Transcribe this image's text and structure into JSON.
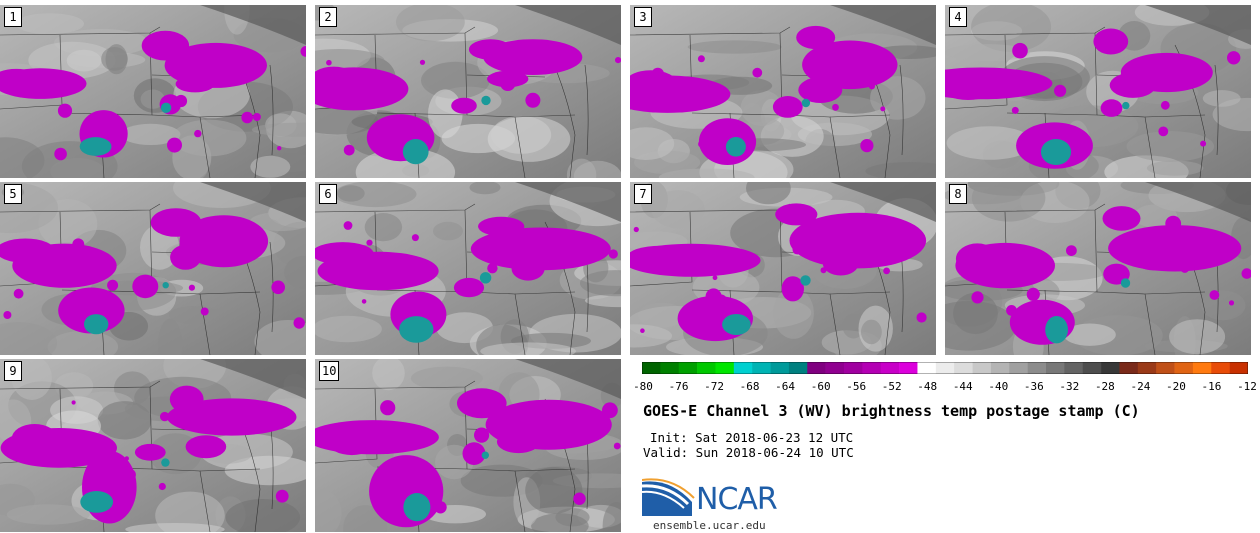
{
  "panels": [
    {
      "label": "1"
    },
    {
      "label": "2"
    },
    {
      "label": "3"
    },
    {
      "label": "4"
    },
    {
      "label": "5"
    },
    {
      "label": "6"
    },
    {
      "label": "7"
    },
    {
      "label": "8"
    },
    {
      "label": "9"
    },
    {
      "label": "10"
    }
  ],
  "colorbar": {
    "ticks": [
      "-80",
      "-76",
      "-72",
      "-68",
      "-64",
      "-60",
      "-56",
      "-52",
      "-48",
      "-44",
      "-40",
      "-36",
      "-32",
      "-28",
      "-24",
      "-20",
      "-16",
      "-12"
    ],
    "colors": [
      "#006400",
      "#008000",
      "#00a000",
      "#00c800",
      "#00e600",
      "#00d0d0",
      "#00b4b4",
      "#009a9a",
      "#008080",
      "#800080",
      "#900090",
      "#a000a0",
      "#b400b4",
      "#c800c8",
      "#dc00dc",
      "#ffffff",
      "#ececec",
      "#dcdcdc",
      "#c8c8c8",
      "#b4b4b4",
      "#a0a0a0",
      "#8c8c8c",
      "#787878",
      "#646464",
      "#4e4e4e",
      "#383838",
      "#7a2a1a",
      "#9a3a18",
      "#c05018",
      "#e06414",
      "#ff7a10",
      "#e84c08",
      "#c83000"
    ]
  },
  "title": "GOES-E Channel 3 (WV) brightness temp postage stamp (C)",
  "init": "Init: Sat 2018-06-23 12 UTC",
  "valid": "Valid: Sun 2018-06-24 10 UTC",
  "logo": {
    "text": "NCAR",
    "url": "ensemble.ucar.edu",
    "color": "#1f5ea8"
  },
  "colors": {
    "cloud_magenta": "#c000c8",
    "cloud_teal": "#1a9a9a",
    "background_gray": "#9a9a9a"
  }
}
